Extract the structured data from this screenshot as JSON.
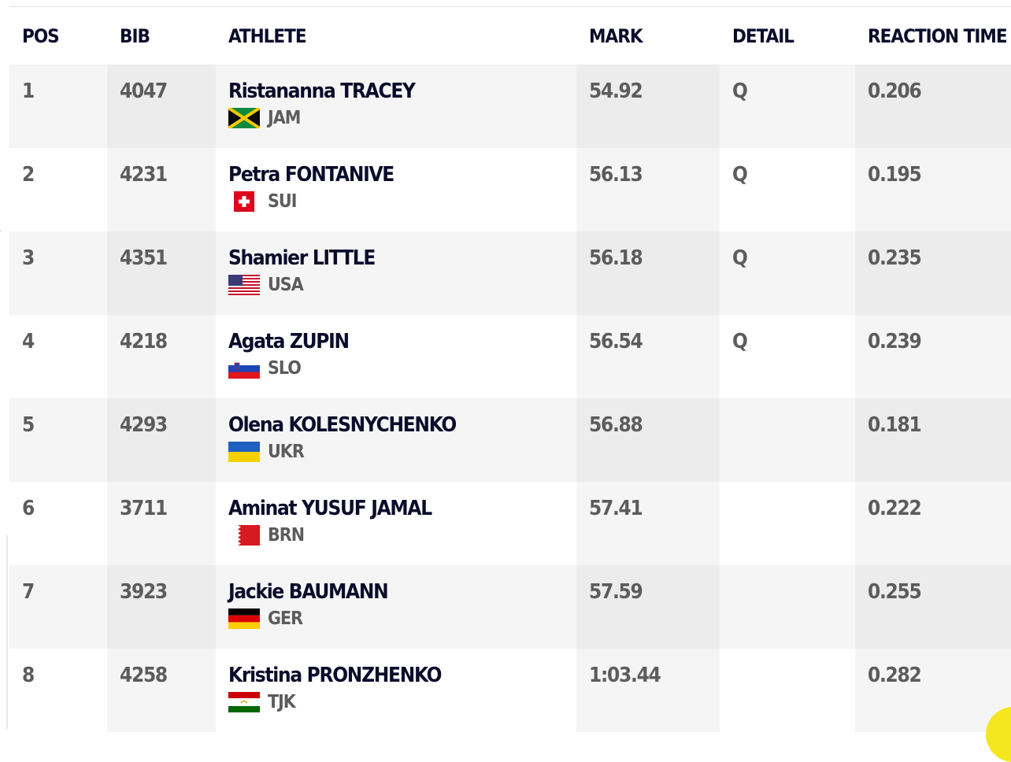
{
  "table": {
    "headers": {
      "pos": "POS",
      "bib": "BIB",
      "athlete": "ATHLETE",
      "mark": "MARK",
      "detail": "DETAIL",
      "reaction_time": "REACTION TIME"
    },
    "rows": [
      {
        "pos": "1",
        "bib": "4047",
        "name": "Ristananna TRACEY",
        "country": "JAM",
        "mark": "54.92",
        "detail": "Q",
        "reaction": "0.206",
        "flag": "jamaica-flag-icon"
      },
      {
        "pos": "2",
        "bib": "4231",
        "name": "Petra FONTANIVE",
        "country": "SUI",
        "mark": "56.13",
        "detail": "Q",
        "reaction": "0.195",
        "flag": "switzerland-flag-icon"
      },
      {
        "pos": "3",
        "bib": "4351",
        "name": "Shamier LITTLE",
        "country": "USA",
        "mark": "56.18",
        "detail": "Q",
        "reaction": "0.235",
        "flag": "usa-flag-icon"
      },
      {
        "pos": "4",
        "bib": "4218",
        "name": "Agata ZUPIN",
        "country": "SLO",
        "mark": "56.54",
        "detail": "Q",
        "reaction": "0.239",
        "flag": "slovenia-flag-icon"
      },
      {
        "pos": "5",
        "bib": "4293",
        "name": "Olena KOLESNYCHENKO",
        "country": "UKR",
        "mark": "56.88",
        "detail": "",
        "reaction": "0.181",
        "flag": "ukraine-flag-icon"
      },
      {
        "pos": "6",
        "bib": "3711",
        "name": "Aminat YUSUF JAMAL",
        "country": "BRN",
        "mark": "57.41",
        "detail": "",
        "reaction": "0.222",
        "flag": "bahrain-flag-icon"
      },
      {
        "pos": "7",
        "bib": "3923",
        "name": "Jackie BAUMANN",
        "country": "GER",
        "mark": "57.59",
        "detail": "",
        "reaction": "0.255",
        "flag": "germany-flag-icon"
      },
      {
        "pos": "8",
        "bib": "4258",
        "name": "Kristina PRONZHENKO",
        "country": "TJK",
        "mark": "1:03.44",
        "detail": "",
        "reaction": "0.282",
        "flag": "tajikistan-flag-icon"
      }
    ]
  },
  "colors": {
    "header_text": "#0b0b2b",
    "cell_text": "#5c5c5c",
    "row_shade": "#f5f5f5",
    "col_shade": "#ececec",
    "accent_yellow": "#f5e71d"
  }
}
